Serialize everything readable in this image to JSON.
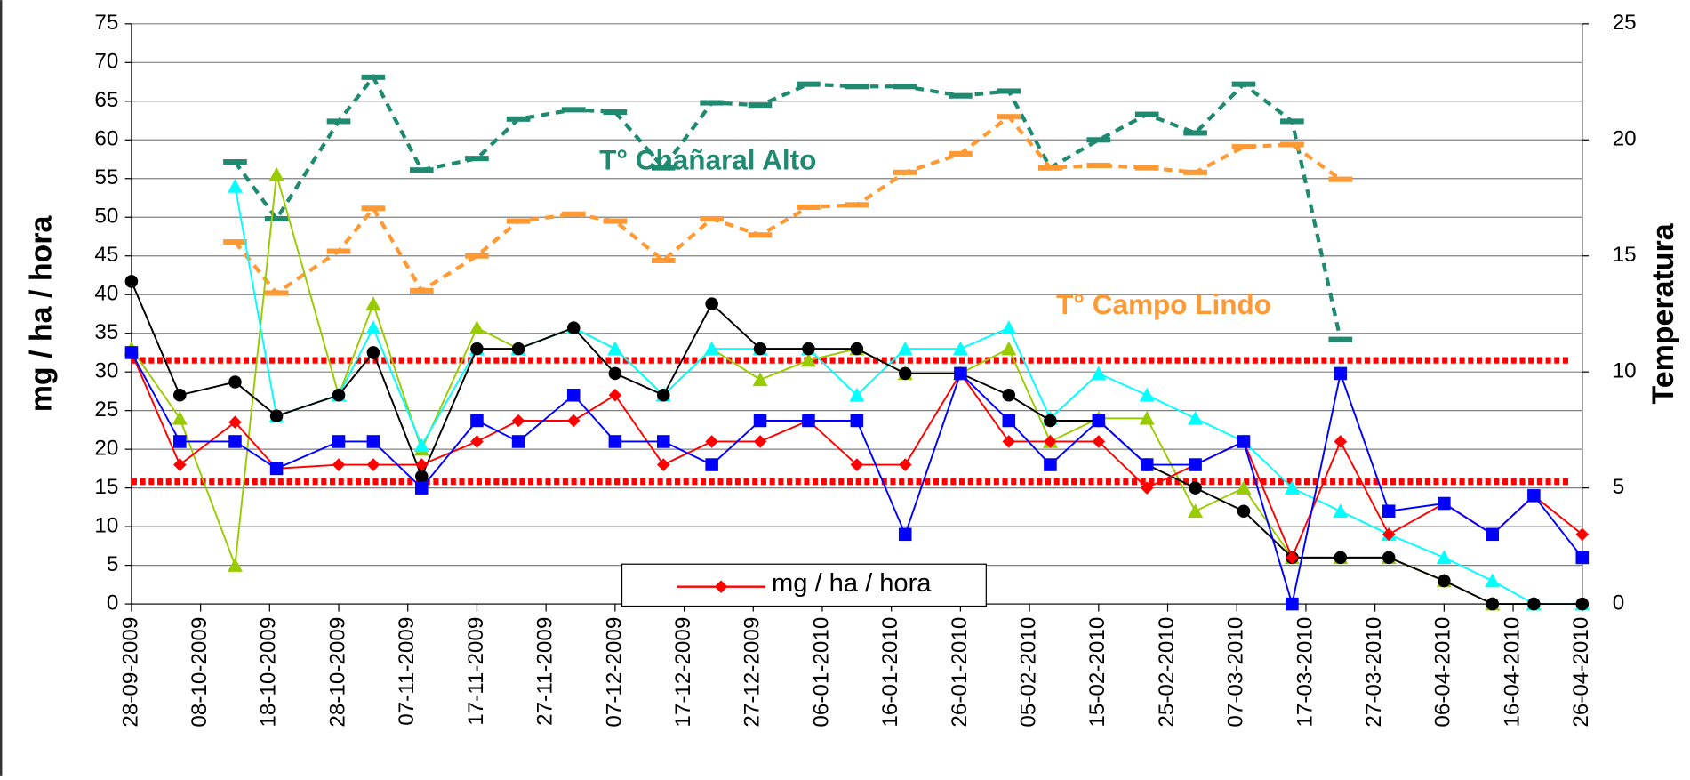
{
  "chart_data": {
    "type": "line",
    "y_label": "mg / ha / hora",
    "y2_label": "Temperatura",
    "x": [
      "28-09-2009",
      "05-10-2009",
      "13-10-2009",
      "19-10-2009",
      "28-10-2009",
      "02-11-2009",
      "09-11-2009",
      "17-11-2009",
      "23-11-2009",
      "01-12-2009",
      "07-12-2009",
      "14-12-2009",
      "21-12-2009",
      "28-12-2009",
      "04-01-2010",
      "11-01-2010",
      "18-01-2010",
      "26-01-2010",
      "02-02-2010",
      "08-02-2010",
      "15-02-2010",
      "22-02-2010",
      "01-03-2010",
      "08-03-2010",
      "15-03-2010",
      "22-03-2010",
      "29-03-2010",
      "06-04-2010",
      "13-04-2010",
      "19-04-2010",
      "26-04-2010"
    ],
    "xlim": [
      "28-09-2009",
      "26-04-2010"
    ],
    "xticks": [
      "28-09-2009",
      "08-10-2009",
      "18-10-2009",
      "28-10-2009",
      "07-11-2009",
      "17-11-2009",
      "27-11-2009",
      "07-12-2009",
      "17-12-2009",
      "27-12-2009",
      "06-01-2010",
      "16-01-2010",
      "26-01-2010",
      "05-02-2010",
      "15-02-2010",
      "25-02-2010",
      "07-03-2010",
      "17-03-2010",
      "27-03-2010",
      "06-04-2010",
      "16-04-2010",
      "26-04-2010"
    ],
    "ylim": [
      0,
      75
    ],
    "yticks": [
      0,
      5,
      10,
      15,
      20,
      25,
      30,
      35,
      40,
      45,
      50,
      55,
      60,
      65,
      70,
      75
    ],
    "y2lim": [
      0,
      25
    ],
    "y2ticks": [
      0,
      5,
      10,
      15,
      20,
      25
    ],
    "grid": true,
    "reference_lines": {
      "color": "#ff0000",
      "values": [
        31.5,
        15.8
      ]
    },
    "series": [
      {
        "color": "#000000",
        "marker": "circle",
        "values": [
          41.7,
          27,
          28.7,
          24.3,
          27,
          32.5,
          16.5,
          33,
          33,
          35.7,
          29.8,
          27,
          38.8,
          33,
          33,
          33,
          29.8,
          29.8,
          27,
          23.7,
          23.7,
          18,
          15,
          12,
          6,
          6,
          6,
          3,
          0,
          0,
          0
        ]
      },
      {
        "color": "#0000ff",
        "marker": "square",
        "values": [
          32.5,
          21,
          21,
          17.5,
          21,
          21,
          15,
          23.7,
          21,
          27,
          21,
          21,
          18,
          23.7,
          23.7,
          23.7,
          9,
          29.8,
          23.7,
          18,
          23.7,
          18,
          18,
          21,
          0,
          29.8,
          12,
          13,
          9,
          14,
          6
        ]
      },
      {
        "name": "mg / ha / hora",
        "color": "#ff0000",
        "marker": "diamond",
        "values": [
          32.5,
          18,
          23.5,
          17.5,
          18,
          18,
          18,
          21,
          23.7,
          23.7,
          27,
          18,
          21,
          21,
          23.7,
          18,
          18,
          29.8,
          21,
          21,
          21,
          15,
          18,
          21,
          6,
          21,
          9,
          13,
          9,
          14,
          9
        ]
      },
      {
        "color": "#00ffff",
        "marker": "triangle",
        "values": [
          null,
          null,
          54,
          24.3,
          27,
          35.7,
          20.5,
          33,
          33,
          35.7,
          33,
          27,
          33,
          33,
          33,
          27,
          33,
          33,
          35.7,
          24,
          29.8,
          27,
          24,
          21,
          15,
          12,
          9,
          6,
          3,
          0,
          0
        ]
      },
      {
        "color": "#99cc00",
        "marker": "triangle",
        "values": [
          33,
          24,
          5,
          55.5,
          27,
          38.8,
          20,
          35.7,
          33,
          35.7,
          33,
          27,
          33,
          29,
          31.5,
          33,
          29.8,
          29.8,
          33,
          21,
          24,
          24,
          12,
          15,
          6,
          6,
          6,
          3,
          0,
          0,
          null
        ]
      },
      {
        "name": "T° Chañaral Alto",
        "color": "#1f8a70",
        "marker": "dash",
        "axis": "y2",
        "values": [
          null,
          null,
          19.05,
          16.6,
          20.8,
          22.7,
          18.7,
          19.2,
          20.9,
          21.3,
          21.2,
          18.8,
          21.6,
          21.5,
          22.4,
          22.3,
          22.3,
          21.9,
          22.1,
          18.8,
          20,
          21.1,
          20.3,
          22.4,
          20.8,
          11.4,
          null,
          null,
          null,
          null,
          null
        ]
      },
      {
        "name": "T° Campo Lindo",
        "color": "#ff9933",
        "marker": "dash",
        "axis": "y2",
        "values": [
          null,
          null,
          15.6,
          13.4,
          15.2,
          17.05,
          13.5,
          15,
          16.5,
          16.8,
          16.5,
          14.8,
          16.6,
          15.9,
          17.1,
          17.2,
          18.6,
          19.4,
          21,
          18.8,
          18.9,
          18.8,
          18.6,
          19.7,
          19.8,
          18.3,
          null,
          null,
          null,
          null,
          null
        ]
      }
    ]
  }
}
